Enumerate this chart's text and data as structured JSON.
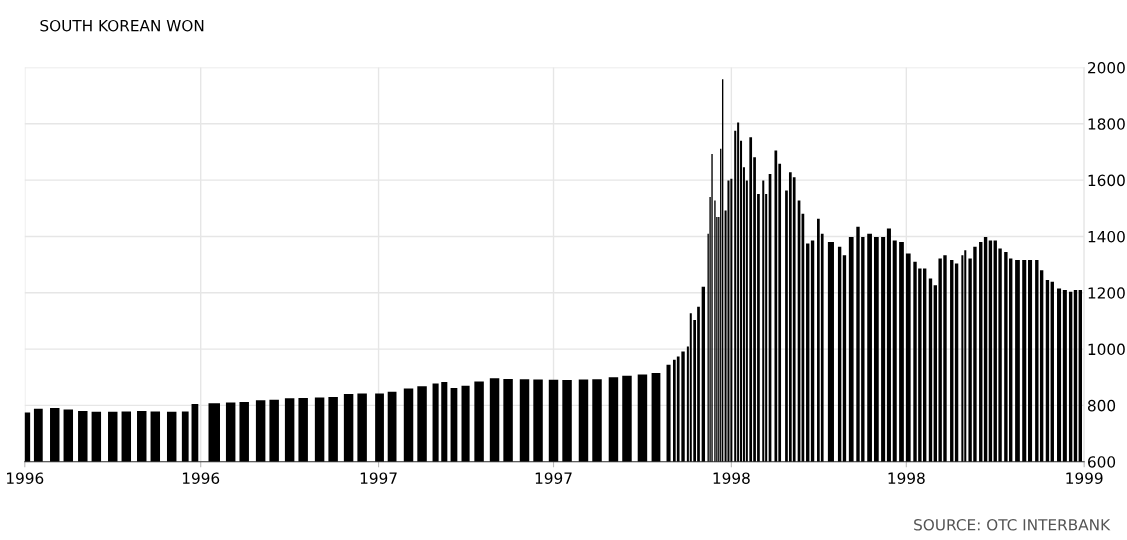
{
  "chart_data": {
    "type": "bar",
    "title": "SOUTH KOREAN WON",
    "annotations": [
      "SOURCE: OTC INTERBANK"
    ],
    "x": [
      "1996-01-02",
      "1996-01-15",
      "1996-02-01",
      "1996-02-15",
      "1996-03-01",
      "1996-03-15",
      "1996-04-01",
      "1996-04-15",
      "1996-05-01",
      "1996-05-15",
      "1996-06-01",
      "1996-06-15",
      "1996-06-25",
      "1996-07-15",
      "1996-08-01",
      "1996-08-15",
      "1996-09-01",
      "1996-09-15",
      "1996-10-01",
      "1996-10-15",
      "1996-11-01",
      "1996-11-15",
      "1996-12-01",
      "1996-12-15",
      "1997-01-02",
      "1997-01-15",
      "1997-02-01",
      "1997-02-15",
      "1997-03-01",
      "1997-03-10",
      "1997-03-20",
      "1997-04-01",
      "1997-04-15",
      "1997-05-01",
      "1997-05-15",
      "1997-06-01",
      "1997-06-15",
      "1997-07-01",
      "1997-07-15",
      "1997-08-01",
      "1997-08-15",
      "1997-09-01",
      "1997-09-15",
      "1997-10-01",
      "1997-10-15",
      "1997-10-28",
      "1997-11-03",
      "1997-11-07",
      "1997-11-12",
      "1997-11-17",
      "1997-11-20",
      "1997-11-24",
      "1997-11-28",
      "1997-12-03",
      "1997-12-08",
      "1997-12-10",
      "1997-12-12",
      "1997-12-15",
      "1997-12-17",
      "1997-12-19",
      "1997-12-21",
      "1997-12-23",
      "1997-12-26",
      "1997-12-29",
      "1998-01-01",
      "1998-01-05",
      "1998-01-08",
      "1998-01-11",
      "1998-01-14",
      "1998-01-17",
      "1998-01-21",
      "1998-01-25",
      "1998-01-29",
      "1998-02-03",
      "1998-02-06",
      "1998-02-10",
      "1998-02-16",
      "1998-02-20",
      "1998-02-27",
      "1998-03-03",
      "1998-03-07",
      "1998-03-12",
      "1998-03-16",
      "1998-03-21",
      "1998-03-26",
      "1998-04-01",
      "1998-04-05",
      "1998-04-14",
      "1998-04-23",
      "1998-04-28",
      "1998-05-05",
      "1998-05-12",
      "1998-05-17",
      "1998-05-24",
      "1998-05-31",
      "1998-06-07",
      "1998-06-13",
      "1998-06-19",
      "1998-06-26",
      "1998-07-03",
      "1998-07-10",
      "1998-07-15",
      "1998-07-20",
      "1998-07-26",
      "1998-07-31",
      "1998-08-05",
      "1998-08-10",
      "1998-08-17",
      "1998-08-22",
      "1998-08-28",
      "1998-08-31",
      "1998-09-05",
      "1998-09-10",
      "1998-09-16",
      "1998-09-21",
      "1998-09-26",
      "1998-10-01",
      "1998-10-06",
      "1998-10-12",
      "1998-10-17",
      "1998-10-24",
      "1998-10-31",
      "1998-11-06",
      "1998-11-13",
      "1998-11-18",
      "1998-11-24",
      "1998-11-29",
      "1998-12-06",
      "1998-12-12",
      "1998-12-18",
      "1998-12-23",
      "1998-12-28"
    ],
    "series": [
      {
        "color": "#000000",
        "values": [
          775,
          788,
          791,
          785,
          780,
          777,
          777,
          778,
          780,
          778,
          777,
          778,
          805,
          808,
          810,
          812,
          818,
          820,
          825,
          826,
          828,
          830,
          840,
          842,
          842,
          848,
          860,
          868,
          878,
          883,
          862,
          870,
          885,
          896,
          894,
          893,
          892,
          891,
          890,
          892,
          893,
          900,
          905,
          910,
          915,
          944,
          962,
          974,
          991,
          1009,
          1127,
          1103,
          1150,
          1221,
          1410,
          1540,
          1693,
          1528,
          1469,
          1469,
          1711,
          1958,
          1492,
          1599,
          1605,
          1775,
          1805,
          1740,
          1646,
          1599,
          1752,
          1681,
          1551,
          1599,
          1551,
          1622,
          1705,
          1658,
          1563,
          1628,
          1610,
          1528,
          1481,
          1375,
          1386,
          1463,
          1410,
          1380,
          1363,
          1333,
          1398,
          1434,
          1398,
          1410,
          1398,
          1398,
          1428,
          1386,
          1380,
          1339,
          1310,
          1286,
          1286,
          1251,
          1227,
          1322,
          1333,
          1316,
          1304,
          1333,
          1351,
          1322,
          1363,
          1380,
          1398,
          1386,
          1386,
          1357,
          1345,
          1322,
          1316,
          1316,
          1316,
          1316,
          1280,
          1245,
          1239,
          1215,
          1210,
          1204,
          1210,
          1210
        ]
      }
    ],
    "xlim": [
      "1996-01-01",
      "1999-01-01"
    ],
    "xticks": [
      {
        "value": "1996-01-01",
        "label": "1996"
      },
      {
        "value": "1996-07-01",
        "label": "1996"
      },
      {
        "value": "1997-01-01",
        "label": "1997"
      },
      {
        "value": "1997-07-01",
        "label": "1997"
      },
      {
        "value": "1998-01-01",
        "label": "1998"
      },
      {
        "value": "1998-07-01",
        "label": "1998"
      },
      {
        "value": "1999-01-01",
        "label": "1999"
      }
    ],
    "ylim": [
      600,
      2000
    ],
    "yticks": [
      600,
      800,
      1000,
      1200,
      1400,
      1600,
      1800,
      2000
    ],
    "grid": true
  }
}
